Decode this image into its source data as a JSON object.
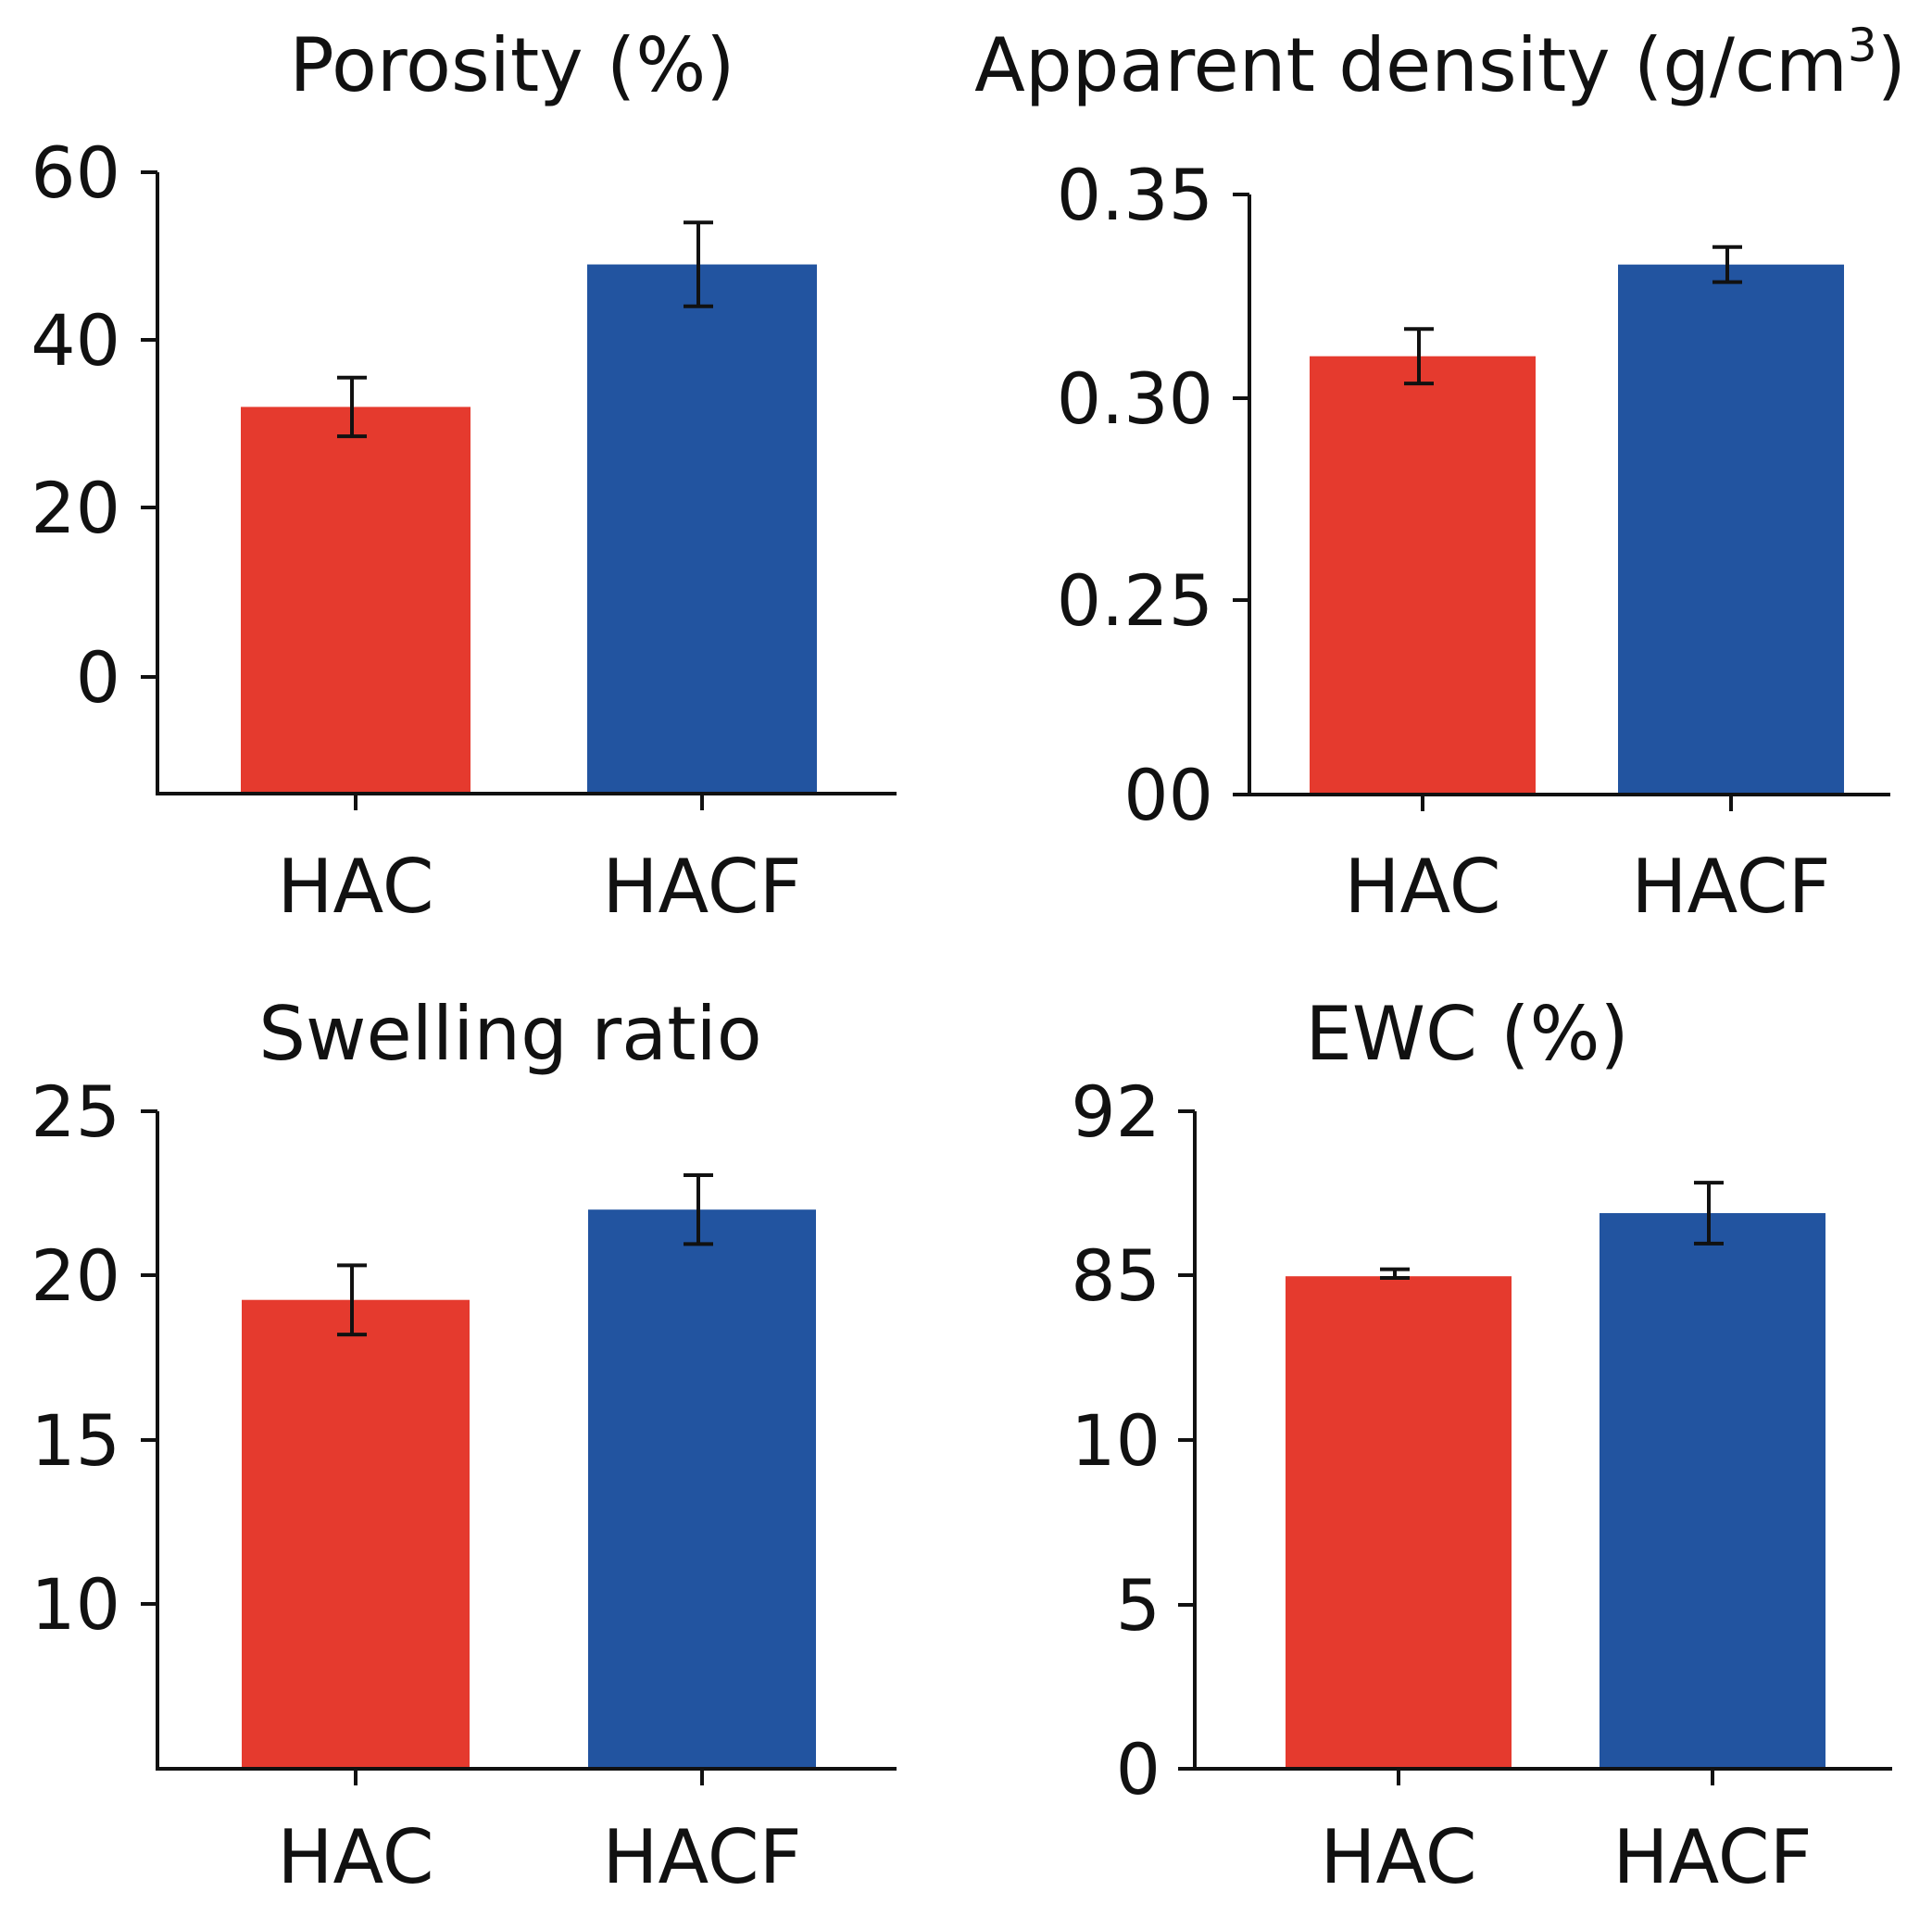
{
  "figure": {
    "colors": {
      "HAC": "#e53a2e",
      "HACF": "#2254a0",
      "axis": "#111111"
    }
  },
  "chart_data": [
    {
      "type": "bar",
      "title_main": "Porosity (%)",
      "title_sup": "",
      "title_end": "",
      "categories": [
        "HAC",
        "HACF"
      ],
      "values": [
        32,
        49
      ],
      "errors": [
        3.5,
        5
      ],
      "ylim": [
        -14,
        60
      ],
      "yticks": [
        0,
        20,
        40,
        60
      ],
      "ytick_labels": [
        "0",
        "20",
        "40",
        "60"
      ],
      "xlabel": "",
      "ylabel": ""
    },
    {
      "type": "bar",
      "title_main": "Apparent density (g/cm",
      "title_sup": "3",
      "title_end": ")",
      "categories": [
        "HAC",
        "HACF"
      ],
      "values": [
        0.3103,
        0.3328
      ],
      "errors": [
        0.0067,
        0.0043
      ],
      "ylim": [
        0.201,
        0.35
      ],
      "yticks": [
        0.201,
        0.25,
        0.3,
        0.35
      ],
      "ytick_labels": [
        "00",
        "0.25",
        "0.30",
        "0.35"
      ],
      "ytick_note": "printed tick values as shown; axis break implied",
      "xlabel": "",
      "ylabel": ""
    },
    {
      "type": "bar",
      "title_main": "Swelling ratio",
      "title_sup": "",
      "title_end": "",
      "categories": [
        "HAC",
        "HACF"
      ],
      "values": [
        19.25,
        22.0
      ],
      "errors": [
        1.05,
        1.05
      ],
      "ylim": [
        5.0,
        25
      ],
      "yticks": [
        10,
        15,
        20,
        25
      ],
      "ytick_labels": [
        "10",
        "15",
        "20",
        "25"
      ],
      "xlabel": "",
      "ylabel": ""
    },
    {
      "type": "bar",
      "title_main": "EWC (%)",
      "title_sup": "",
      "title_end": "",
      "categories": [
        "HAC",
        "HACF"
      ],
      "values": [
        84.5,
        87.65
      ],
      "errors": [
        0.75,
        1.3
      ],
      "ylim": [
        0,
        92
      ],
      "yticks": [
        0,
        5,
        10,
        85,
        92
      ],
      "ytick_labels": [
        "0",
        "5",
        "10",
        "85",
        "92"
      ],
      "ytick_note": "non-linear printed scale as shown",
      "xlabel": "",
      "ylabel": ""
    }
  ]
}
